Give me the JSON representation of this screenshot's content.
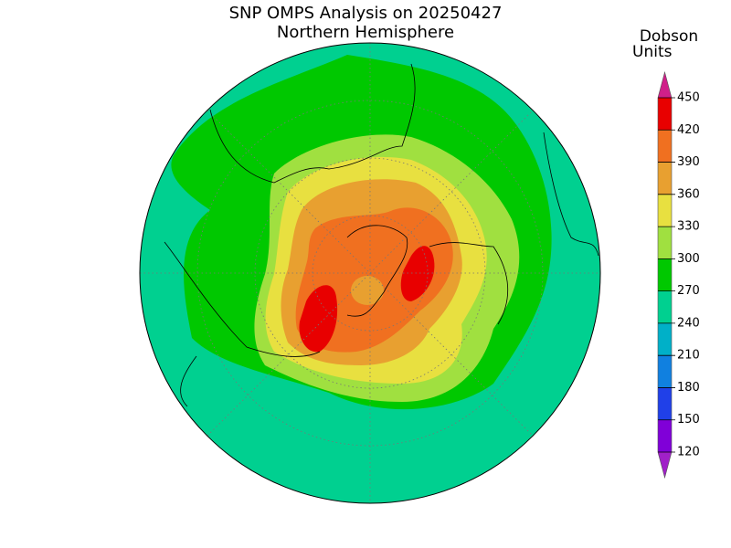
{
  "title": "SNP OMPS Analysis on 20250427",
  "subtitle": "Northern Hemisphere",
  "colorbar": {
    "label": [
      "Dobson",
      "Units"
    ],
    "ticks": [
      120,
      150,
      180,
      210,
      240,
      270,
      300,
      330,
      360,
      390,
      420,
      450
    ],
    "colors": [
      "#a020c8",
      "#8000d8",
      "#2040e8",
      "#1080e0",
      "#00b0c8",
      "#00d090",
      "#00c800",
      "#a0e040",
      "#e8e040",
      "#e8a030",
      "#f07020",
      "#e80000",
      "#d0208a"
    ]
  }
}
